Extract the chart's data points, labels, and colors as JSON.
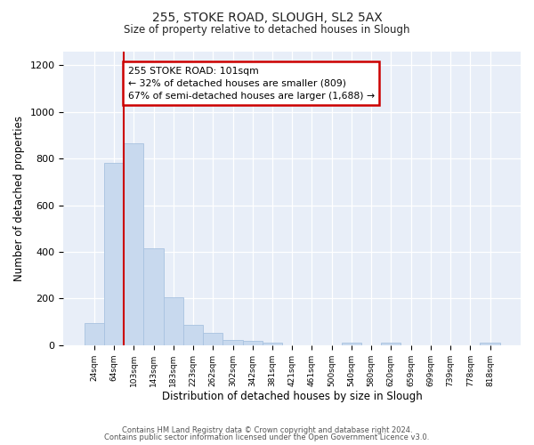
{
  "title1": "255, STOKE ROAD, SLOUGH, SL2 5AX",
  "title2": "Size of property relative to detached houses in Slough",
  "xlabel": "Distribution of detached houses by size in Slough",
  "ylabel": "Number of detached properties",
  "bar_labels": [
    "24sqm",
    "64sqm",
    "103sqm",
    "143sqm",
    "183sqm",
    "223sqm",
    "262sqm",
    "302sqm",
    "342sqm",
    "381sqm",
    "421sqm",
    "461sqm",
    "500sqm",
    "540sqm",
    "580sqm",
    "620sqm",
    "659sqm",
    "699sqm",
    "739sqm",
    "778sqm",
    "818sqm"
  ],
  "bar_values": [
    95,
    783,
    865,
    415,
    205,
    88,
    52,
    22,
    18,
    10,
    0,
    0,
    0,
    12,
    0,
    10,
    0,
    0,
    0,
    0,
    12
  ],
  "bar_color": "#c8d9ee",
  "bar_edgecolor": "#a8c2e0",
  "vline_color": "#cc0000",
  "annotation_title": "255 STOKE ROAD: 101sqm",
  "annotation_line1": "← 32% of detached houses are smaller (809)",
  "annotation_line2": "67% of semi-detached houses are larger (1,688) →",
  "annotation_box_color": "#cc0000",
  "ylim": [
    0,
    1260
  ],
  "yticks": [
    0,
    200,
    400,
    600,
    800,
    1000,
    1200
  ],
  "footer1": "Contains HM Land Registry data © Crown copyright and database right 2024.",
  "footer2": "Contains public sector information licensed under the Open Government Licence v3.0.",
  "bg_color": "#ffffff",
  "plot_bg_color": "#e8eef8"
}
